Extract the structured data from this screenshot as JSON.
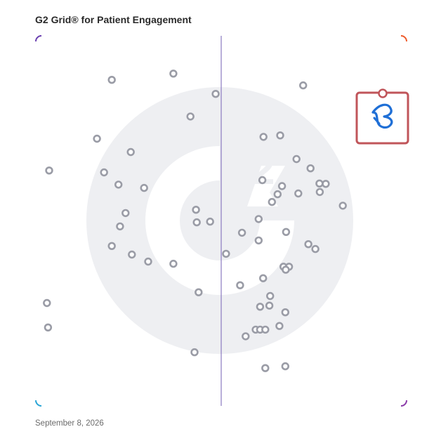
{
  "title": "G2 Grid® for Patient Engagement",
  "date": "September 8, 2026",
  "colors": {
    "frame_top_left": "#6a3fb0",
    "frame_top_right": "#ee5a2a",
    "frame_bottom_left": "#2aa5d6",
    "frame_bottom_right": "#8a3aa8",
    "point_stroke": "#9a9ca6",
    "watermark": "#eeeff2",
    "highlight_box": "#c0555a",
    "highlight_logo": "#1f6fd6"
  },
  "chart_data": {
    "type": "scatter",
    "grid": true,
    "xlim": [
      0,
      1
    ],
    "ylim": [
      0,
      1
    ],
    "points": [
      {
        "x": 0.205,
        "y": 0.881
      },
      {
        "x": 0.371,
        "y": 0.898
      },
      {
        "x": 0.485,
        "y": 0.843
      },
      {
        "x": 0.417,
        "y": 0.782
      },
      {
        "x": 0.165,
        "y": 0.722
      },
      {
        "x": 0.256,
        "y": 0.686
      },
      {
        "x": 0.036,
        "y": 0.636
      },
      {
        "x": 0.184,
        "y": 0.631
      },
      {
        "x": 0.223,
        "y": 0.598
      },
      {
        "x": 0.292,
        "y": 0.589
      },
      {
        "x": 0.242,
        "y": 0.521
      },
      {
        "x": 0.227,
        "y": 0.485
      },
      {
        "x": 0.432,
        "y": 0.53
      },
      {
        "x": 0.434,
        "y": 0.496
      },
      {
        "x": 0.47,
        "y": 0.498
      },
      {
        "x": 0.205,
        "y": 0.432
      },
      {
        "x": 0.259,
        "y": 0.409
      },
      {
        "x": 0.303,
        "y": 0.39
      },
      {
        "x": 0.371,
        "y": 0.384
      },
      {
        "x": 0.439,
        "y": 0.307
      },
      {
        "x": 0.03,
        "y": 0.278
      },
      {
        "x": 0.033,
        "y": 0.212
      },
      {
        "x": 0.428,
        "y": 0.145
      },
      {
        "x": 0.721,
        "y": 0.866
      },
      {
        "x": 0.614,
        "y": 0.727
      },
      {
        "x": 0.659,
        "y": 0.731
      },
      {
        "x": 0.703,
        "y": 0.667
      },
      {
        "x": 0.741,
        "y": 0.642
      },
      {
        "x": 0.611,
        "y": 0.61
      },
      {
        "x": 0.664,
        "y": 0.594
      },
      {
        "x": 0.652,
        "y": 0.572
      },
      {
        "x": 0.637,
        "y": 0.551
      },
      {
        "x": 0.708,
        "y": 0.574
      },
      {
        "x": 0.766,
        "y": 0.578
      },
      {
        "x": 0.782,
        "y": 0.6
      },
      {
        "x": 0.765,
        "y": 0.601
      },
      {
        "x": 0.828,
        "y": 0.541
      },
      {
        "x": 0.601,
        "y": 0.505
      },
      {
        "x": 0.556,
        "y": 0.468
      },
      {
        "x": 0.601,
        "y": 0.447
      },
      {
        "x": 0.675,
        "y": 0.47
      },
      {
        "x": 0.735,
        "y": 0.437
      },
      {
        "x": 0.754,
        "y": 0.424
      },
      {
        "x": 0.513,
        "y": 0.411
      },
      {
        "x": 0.668,
        "y": 0.376
      },
      {
        "x": 0.683,
        "y": 0.376
      },
      {
        "x": 0.674,
        "y": 0.368
      },
      {
        "x": 0.613,
        "y": 0.345
      },
      {
        "x": 0.551,
        "y": 0.326
      },
      {
        "x": 0.632,
        "y": 0.297
      },
      {
        "x": 0.605,
        "y": 0.268
      },
      {
        "x": 0.63,
        "y": 0.271
      },
      {
        "x": 0.673,
        "y": 0.253
      },
      {
        "x": 0.657,
        "y": 0.216
      },
      {
        "x": 0.593,
        "y": 0.206
      },
      {
        "x": 0.605,
        "y": 0.206
      },
      {
        "x": 0.619,
        "y": 0.206
      },
      {
        "x": 0.566,
        "y": 0.188
      },
      {
        "x": 0.619,
        "y": 0.102
      },
      {
        "x": 0.673,
        "y": 0.107
      }
    ],
    "highlighted": {
      "name": "product-logo",
      "x": 0.934,
      "y": 0.796
    }
  }
}
